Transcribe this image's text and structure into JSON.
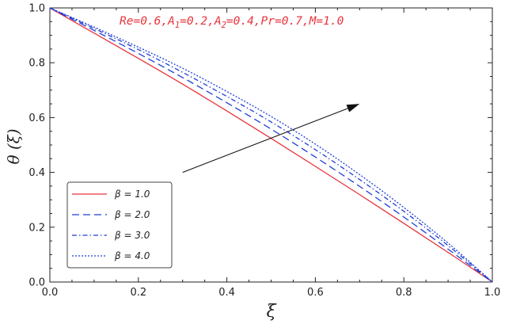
{
  "chart_data": {
    "type": "line",
    "xlabel": "ξ",
    "ylabel": "θ (ξ)",
    "xlim": [
      0.0,
      1.0
    ],
    "ylim": [
      0.0,
      1.0
    ],
    "x_ticks": [
      "0.0",
      "0.2",
      "0.4",
      "0.6",
      "0.8",
      "1.0"
    ],
    "y_ticks": [
      "0.0",
      "0.2",
      "0.4",
      "0.6",
      "0.8",
      "1.0"
    ],
    "grid": false,
    "legend_position": "bottom-left",
    "annotation": {
      "text": "Re=0.6,A",
      "parts": [
        {
          "text": "Re=0.6,A"
        },
        {
          "text": "1",
          "sub": true
        },
        {
          "text": "=0.2,A"
        },
        {
          "text": "2",
          "sub": true
        },
        {
          "text": "=0.4,Pr=0.7,M=1.0"
        }
      ],
      "color": "#e8333b"
    },
    "arrow": {
      "from": [
        0.3,
        0.4
      ],
      "to": [
        0.7,
        0.65
      ],
      "color": "#111111",
      "direction": "increasing beta"
    },
    "series": [
      {
        "name": "1.0",
        "legend_text": "β = 1.0",
        "color": "#e8333b",
        "dash": "solid",
        "x": [
          0,
          0.1,
          0.2,
          0.3,
          0.4,
          0.5,
          0.6,
          0.7,
          0.8,
          0.9,
          1.0
        ],
        "y": [
          1.0,
          0.908,
          0.816,
          0.722,
          0.624,
          0.524,
          0.422,
          0.319,
          0.214,
          0.108,
          0.0
        ]
      },
      {
        "name": "2.0",
        "legend_text": "β = 2.0",
        "color": "#1f3fd6",
        "dash": "dashed",
        "x": [
          0,
          0.1,
          0.2,
          0.3,
          0.4,
          0.5,
          0.6,
          0.7,
          0.8,
          0.9,
          1.0
        ],
        "y": [
          1.0,
          0.918,
          0.834,
          0.746,
          0.654,
          0.558,
          0.456,
          0.349,
          0.237,
          0.12,
          0.0
        ]
      },
      {
        "name": "3.0",
        "legend_text": "β = 3.0",
        "color": "#1f3fd6",
        "dash": "dashdot",
        "x": [
          0,
          0.1,
          0.2,
          0.3,
          0.4,
          0.5,
          0.6,
          0.7,
          0.8,
          0.9,
          1.0
        ],
        "y": [
          1.0,
          0.925,
          0.848,
          0.765,
          0.677,
          0.584,
          0.483,
          0.374,
          0.258,
          0.133,
          0.0
        ]
      },
      {
        "name": "4.0",
        "legend_text": "β = 4.0",
        "color": "#1f3fd6",
        "dash": "dotted",
        "x": [
          0,
          0.1,
          0.2,
          0.3,
          0.4,
          0.5,
          0.6,
          0.7,
          0.8,
          0.9,
          1.0
        ],
        "y": [
          1.0,
          0.93,
          0.857,
          0.78,
          0.695,
          0.604,
          0.503,
          0.392,
          0.272,
          0.142,
          0.0
        ]
      }
    ]
  }
}
